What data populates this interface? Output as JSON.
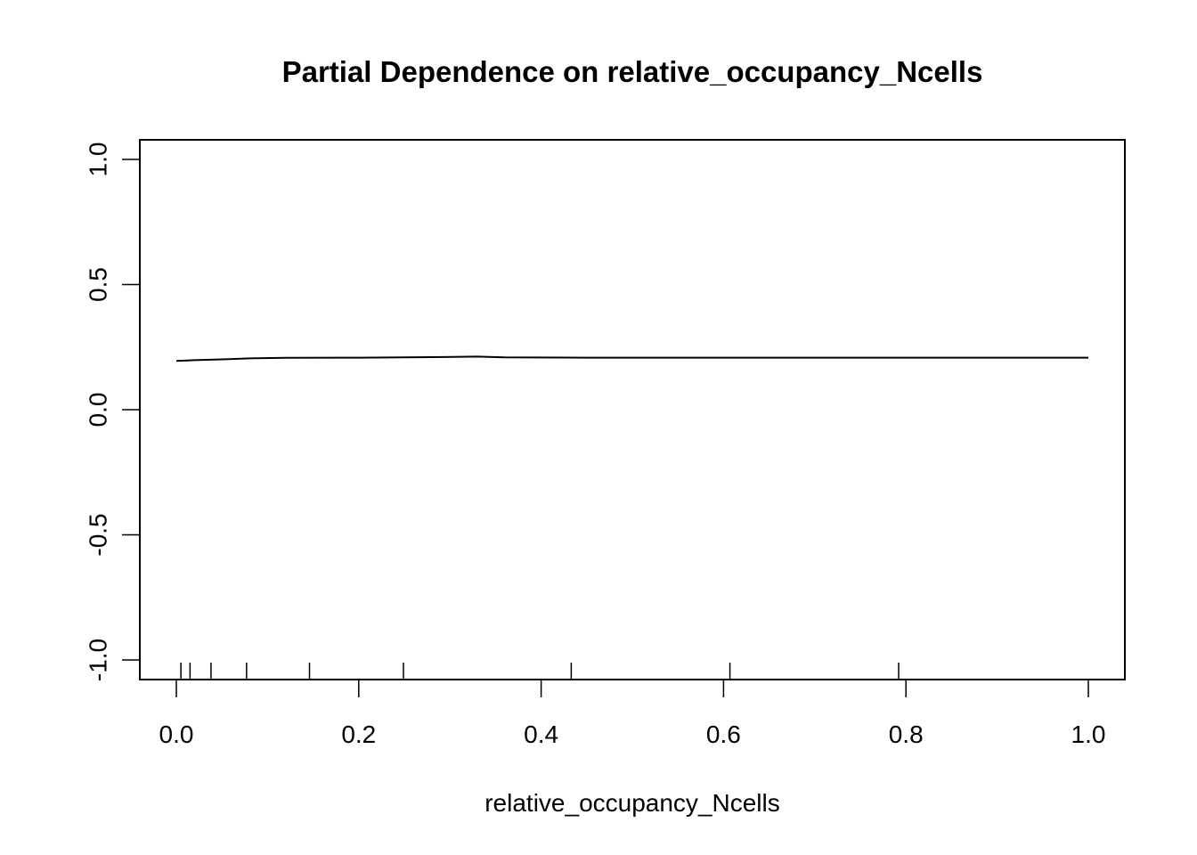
{
  "chart_data": {
    "type": "line",
    "title": "Partial Dependence on relative_occupancy_Ncells",
    "xlabel": "relative_occupancy_Ncells",
    "ylabel": "",
    "xlim": [
      0.0,
      1.0
    ],
    "ylim": [
      -1.0,
      1.0
    ],
    "xticks": [
      0.0,
      0.2,
      0.4,
      0.6,
      0.8,
      1.0
    ],
    "xtick_labels": [
      "0.0",
      "0.2",
      "0.4",
      "0.6",
      "0.8",
      "1.0"
    ],
    "yticks": [
      -1.0,
      -0.5,
      0.0,
      0.5,
      1.0
    ],
    "ytick_labels": [
      "-1.0",
      "-0.5",
      "0.0",
      "0.5",
      "1.0"
    ],
    "grid": false,
    "series": [
      {
        "x": [
          0.0,
          0.02,
          0.05,
          0.08,
          0.12,
          0.2,
          0.28,
          0.33,
          0.36,
          0.45,
          0.6,
          0.8,
          1.0
        ],
        "y": [
          0.195,
          0.198,
          0.201,
          0.205,
          0.207,
          0.208,
          0.21,
          0.212,
          0.209,
          0.208,
          0.208,
          0.208,
          0.208
        ]
      }
    ],
    "rug_x": [
      0.005,
      0.015,
      0.038,
      0.077,
      0.146,
      0.249,
      0.433,
      0.607,
      0.792
    ]
  }
}
